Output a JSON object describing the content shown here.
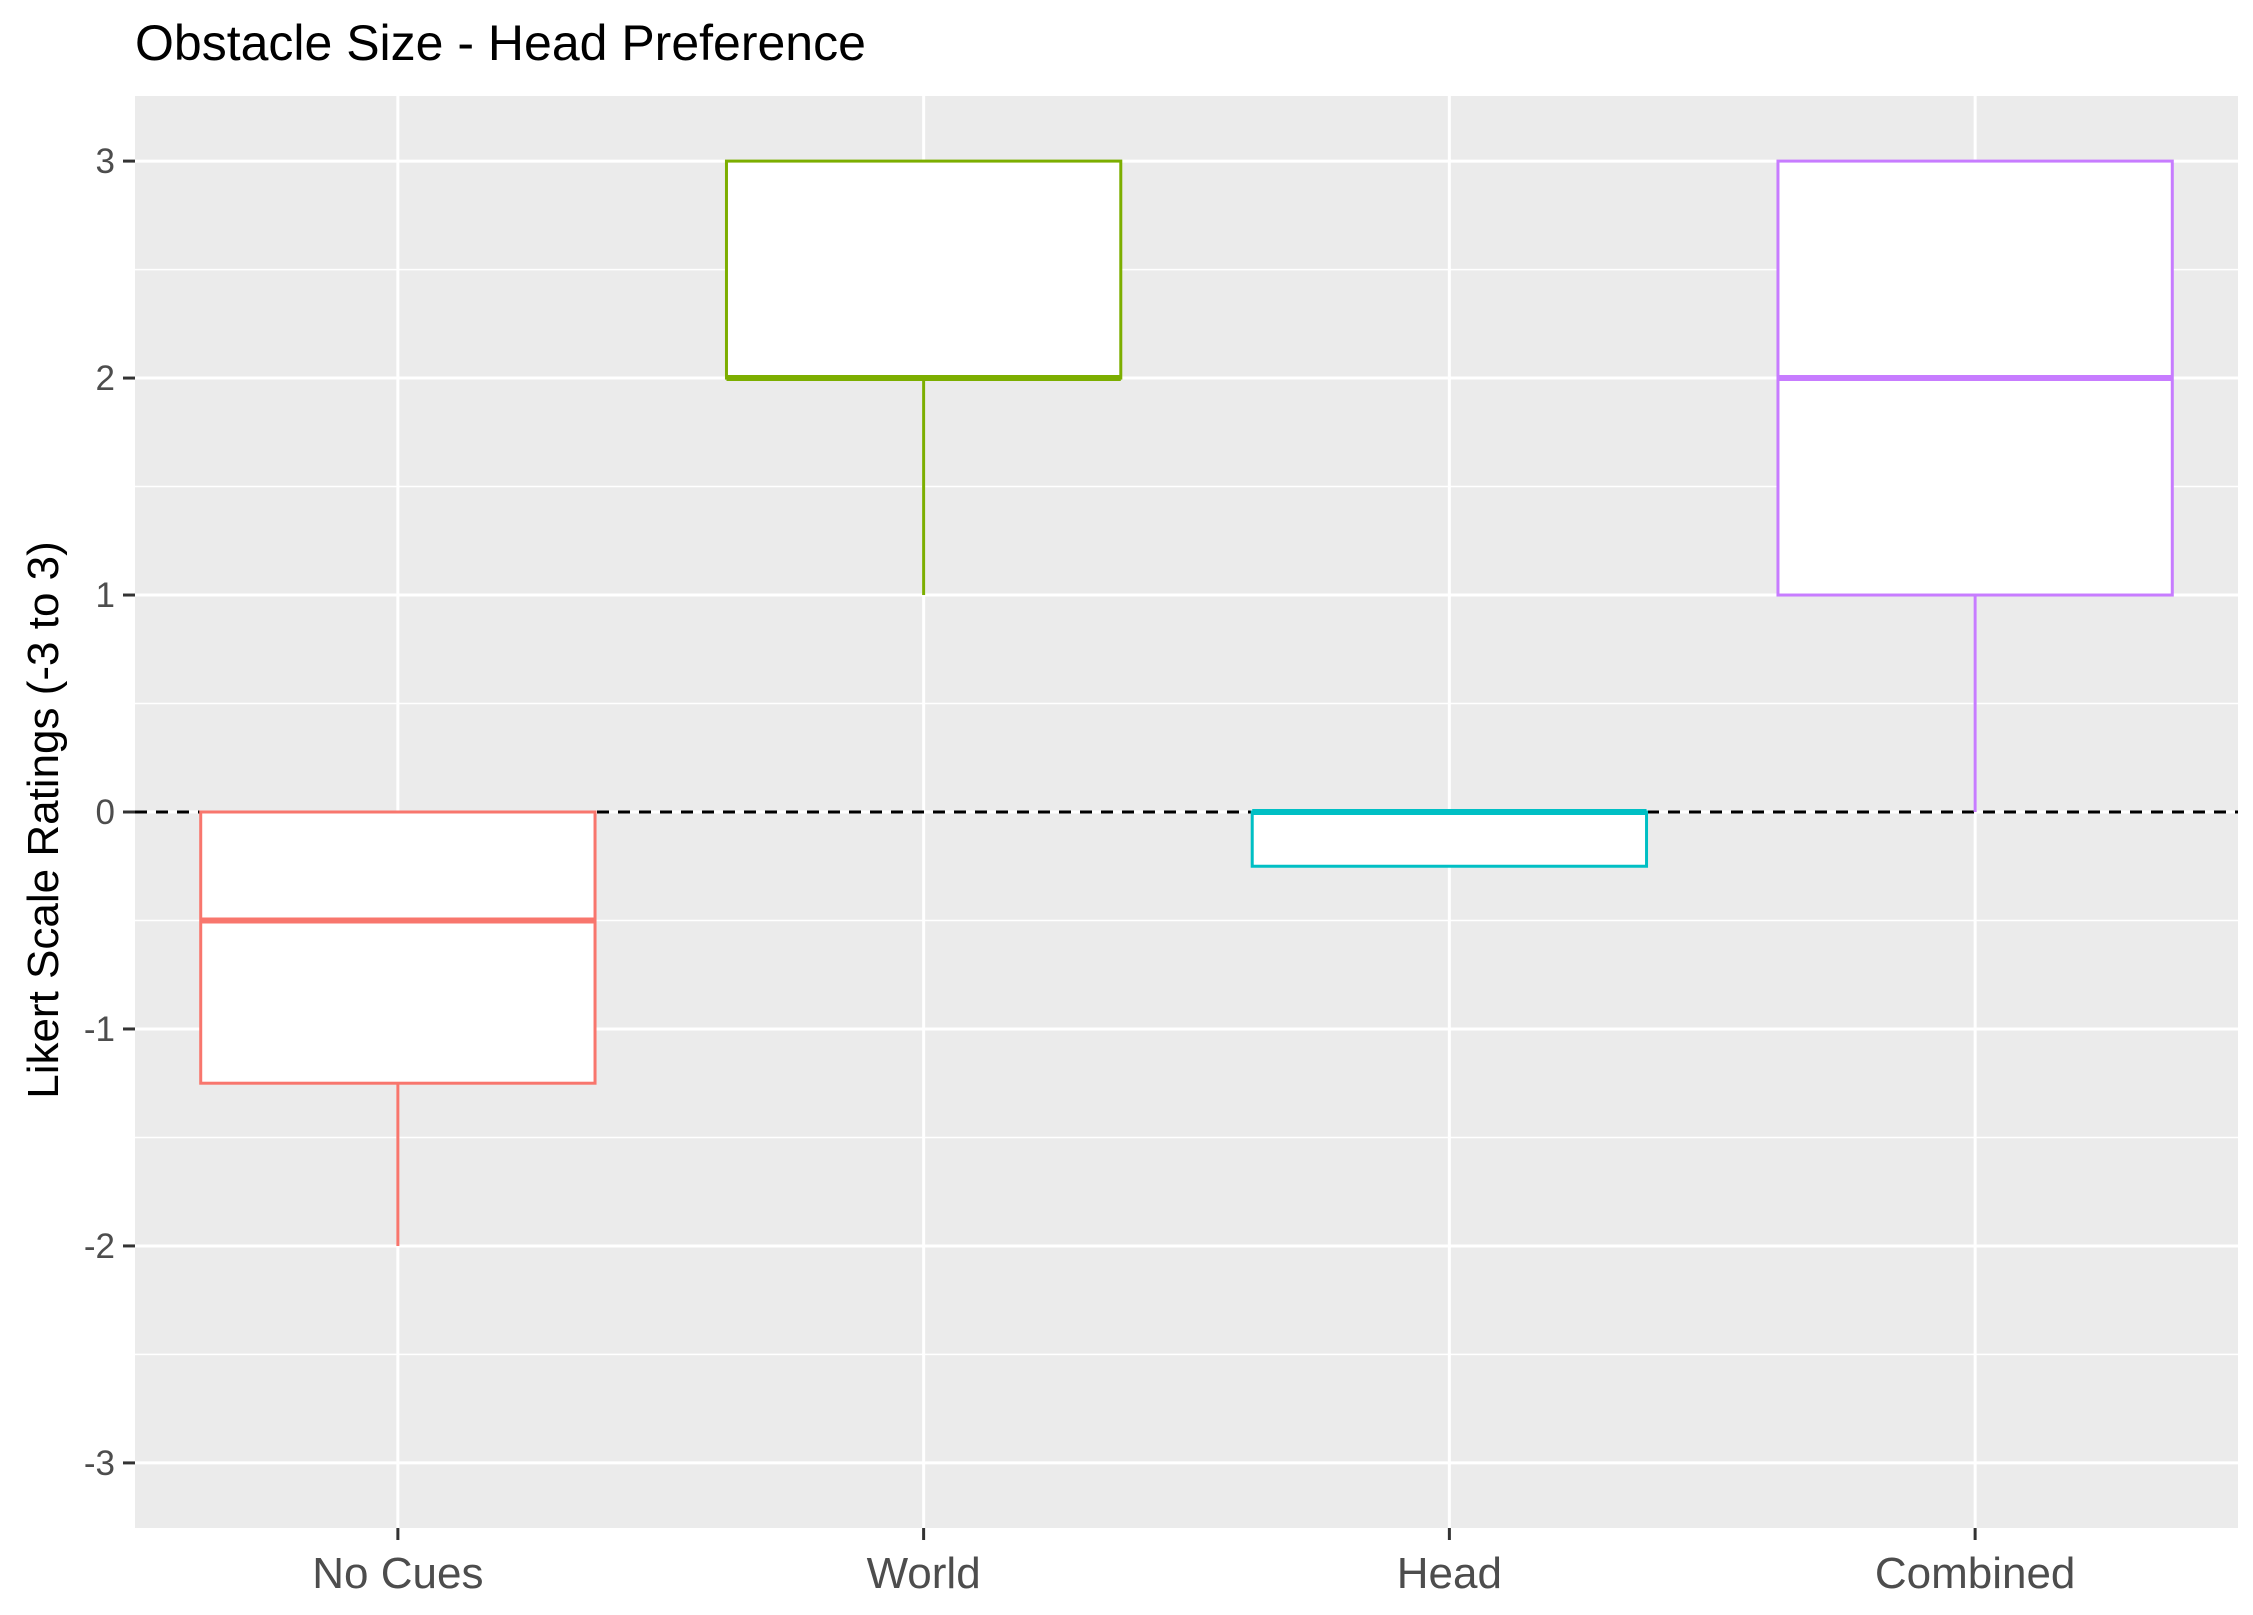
{
  "chart_data": {
    "type": "boxplot",
    "title": "Obstacle Size - Head Preference",
    "xlabel": "",
    "ylabel": "Likert Scale Ratings (-3 to 3)",
    "ylim": [
      -3.3,
      3.3
    ],
    "yticks": [
      3,
      2,
      1,
      0,
      -1,
      -2,
      -3
    ],
    "ytick_labels": [
      "3",
      "2",
      "1",
      "0",
      "-1",
      "-2",
      "-3"
    ],
    "grid": true,
    "legend": "none",
    "reference_line": {
      "y": 0,
      "style": "dashed",
      "color": "#000000"
    },
    "categories": [
      "No Cues",
      "World",
      "Head",
      "Combined"
    ],
    "boxes": [
      {
        "category": "No Cues",
        "color": "#F8766D",
        "whisker_low": -2,
        "q1": -1.25,
        "median": -0.5,
        "q3": 0,
        "whisker_high": 0
      },
      {
        "category": "World",
        "color": "#7CAE00",
        "whisker_low": 1,
        "q1": 2,
        "median": 2,
        "q3": 3,
        "whisker_high": 3
      },
      {
        "category": "Head",
        "color": "#00BFC4",
        "whisker_low": -0.25,
        "q1": -0.25,
        "median": 0,
        "q3": 0,
        "whisker_high": 0
      },
      {
        "category": "Combined",
        "color": "#C77CFF",
        "whisker_low": 0,
        "q1": 1,
        "median": 2,
        "q3": 3,
        "whisker_high": 3
      }
    ],
    "panel_background": "#EBEBEB",
    "grid_color": "#FFFFFF"
  }
}
